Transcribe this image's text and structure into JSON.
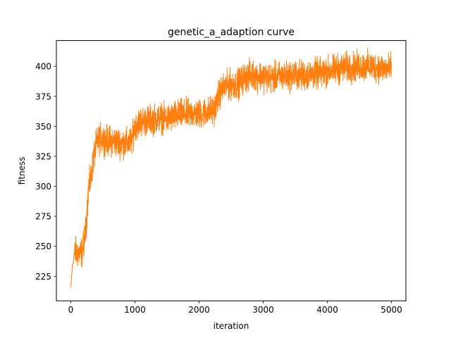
{
  "chart_data": {
    "type": "line",
    "title": "genetic_a_adaption curve",
    "xlabel": "iteration",
    "ylabel": "fitness",
    "xlim": [
      -225,
      5225
    ],
    "ylim": [
      204.5,
      421.5
    ],
    "xticks": [
      0,
      1000,
      2000,
      3000,
      4000,
      5000
    ],
    "yticks": [
      225,
      250,
      275,
      300,
      325,
      350,
      375,
      400
    ],
    "grid": false,
    "legend": "none",
    "series": [
      {
        "color": "#ff7f0e",
        "noise": 6,
        "x": [
          0,
          20,
          50,
          80,
          120,
          150,
          180,
          200,
          230,
          260,
          280,
          310,
          340,
          370,
          400,
          430,
          460,
          500,
          550,
          600,
          700,
          800,
          900,
          950,
          980,
          1000,
          1050,
          1100,
          1200,
          1300,
          1400,
          1500,
          1600,
          1700,
          1800,
          1900,
          2000,
          2100,
          2200,
          2250,
          2300,
          2350,
          2400,
          2500,
          2600,
          2700,
          2800,
          2900,
          3000,
          3100,
          3200,
          3300,
          3400,
          3500,
          3600,
          3700,
          3800,
          3900,
          4000,
          4100,
          4200,
          4300,
          4400,
          4500,
          4600,
          4700,
          4800,
          4900,
          5000
        ],
        "y": [
          215,
          230,
          243,
          245,
          244,
          244,
          246,
          252,
          262,
          285,
          300,
          305,
          318,
          328,
          335,
          338,
          340,
          340,
          338,
          338,
          337,
          336,
          336,
          338,
          345,
          350,
          353,
          354,
          355,
          356,
          357,
          356,
          358,
          360,
          360,
          361,
          360,
          362,
          363,
          365,
          375,
          380,
          383,
          385,
          385,
          390,
          393,
          392,
          392,
          390,
          391,
          392,
          392,
          393,
          392,
          393,
          394,
          394,
          396,
          397,
          398,
          399,
          399,
          400,
          400,
          400,
          399,
          398,
          398
        ]
      }
    ]
  }
}
